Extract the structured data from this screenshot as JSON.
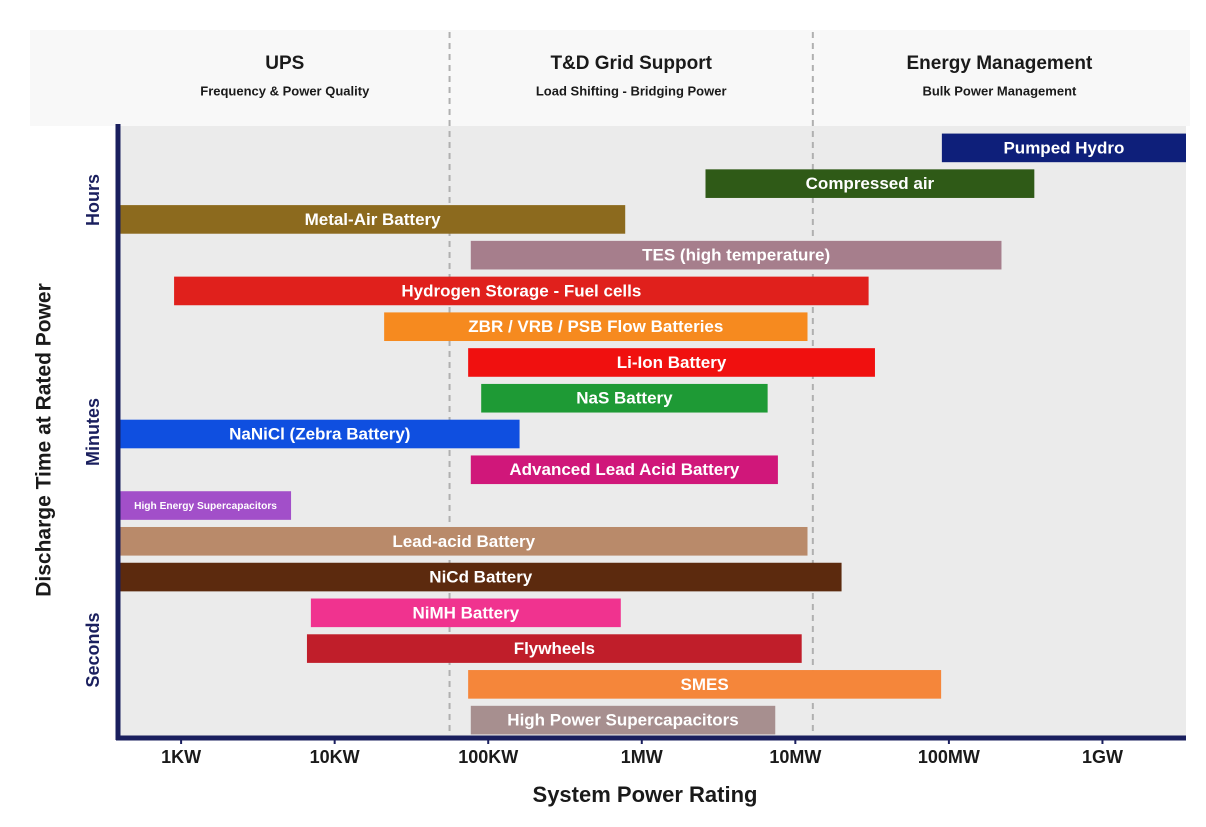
{
  "chart_data": {
    "type": "range_bar",
    "xlabel": "System Power Rating",
    "ylabel": "Discharge Time at Rated Power",
    "y_labels": [
      "Hours",
      "Minutes",
      "Seconds"
    ],
    "log_x": true,
    "xlim": [
      400,
      3500000000
    ],
    "xticks": [
      {
        "value": 1000,
        "label": "1KW"
      },
      {
        "value": 10000,
        "label": "10KW"
      },
      {
        "value": 100000,
        "label": "100KW"
      },
      {
        "value": 1000000,
        "label": "1MW"
      },
      {
        "value": 10000000,
        "label": "10MW"
      },
      {
        "value": 100000000,
        "label": "100MW"
      },
      {
        "value": 1000000000,
        "label": "1GW"
      }
    ],
    "dividers": [
      56000,
      13000000
    ],
    "regions": [
      {
        "title": "UPS",
        "subtitle": "Frequency & Power Quality"
      },
      {
        "title": "T&D Grid Support",
        "subtitle": "Load Shifting - Bridging Power"
      },
      {
        "title": "Energy Management",
        "subtitle": "Bulk Power Management"
      }
    ],
    "bars": [
      {
        "name": "Pumped Hydro",
        "low": 90000000,
        "high": 3500000000,
        "color": "#0e1f7a"
      },
      {
        "name": "Compressed air",
        "low": 2600000,
        "high": 360000000,
        "color": "#2f5a17"
      },
      {
        "name": "Metal-Air Battery",
        "low": 400,
        "high": 780000,
        "color": "#8c6a1e"
      },
      {
        "name": "TES (high temperature)",
        "low": 77000,
        "high": 220000000,
        "color": "#a67e8c"
      },
      {
        "name": "Hydrogen Storage - Fuel cells",
        "low": 900,
        "high": 30000000,
        "color": "#e0201c"
      },
      {
        "name": "ZBR / VRB / PSB  Flow Batteries",
        "low": 21000,
        "high": 12000000,
        "color": "#f68a1f"
      },
      {
        "name": "Li-Ion Battery",
        "low": 74000,
        "high": 33000000,
        "color": "#f0100f"
      },
      {
        "name": "NaS Battery",
        "low": 90000,
        "high": 6600000,
        "color": "#1e9a35"
      },
      {
        "name": "NaNiCl (Zebra Battery)",
        "low": 400,
        "high": 160000,
        "color": "#0f4fe0"
      },
      {
        "name": "Advanced Lead Acid Battery",
        "low": 77000,
        "high": 7700000,
        "color": "#d0177a"
      },
      {
        "name": "High Energy Supercapacitors",
        "low": 400,
        "high": 5200,
        "color": "#a24fc9"
      },
      {
        "name": "Lead-acid Battery",
        "low": 400,
        "high": 12000000,
        "color": "#b98a6a"
      },
      {
        "name": "NiCd Battery",
        "low": 400,
        "high": 20000000,
        "color": "#5c2a0e"
      },
      {
        "name": "NiMH Battery",
        "low": 7000,
        "high": 730000,
        "color": "#f0338f"
      },
      {
        "name": "Flywheels",
        "low": 6600,
        "high": 11000000,
        "color": "#c01e2a"
      },
      {
        "name": "SMES",
        "low": 74000,
        "high": 89000000,
        "color": "#f5863a"
      },
      {
        "name": "High Power Supercapacitors",
        "low": 77000,
        "high": 7400000,
        "color": "#a78f8f"
      }
    ]
  }
}
